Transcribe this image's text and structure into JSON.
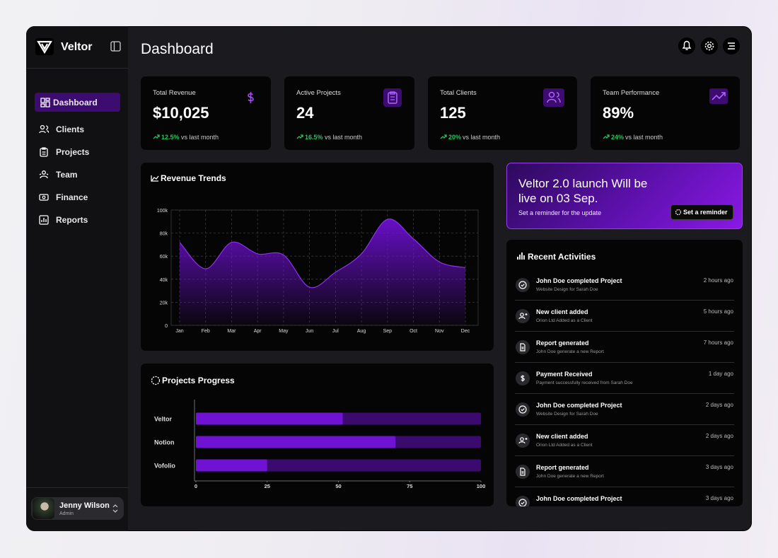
{
  "brand": "Veltor",
  "nav": [
    "Dashboard",
    "Clients",
    "Projects",
    "Team",
    "Finance",
    "Reports"
  ],
  "user": {
    "name": "Jenny Wilson",
    "role": "Admin"
  },
  "header": {
    "title": "Dashboard"
  },
  "stats": [
    {
      "label": "Total Revenue",
      "value": "$10,025",
      "change": "12.5%",
      "note": "vs last month"
    },
    {
      "label": "Active Projects",
      "value": "24",
      "change": "16.5%",
      "note": "vs last month"
    },
    {
      "label": "Total Clients",
      "value": "125",
      "change": "20%",
      "note": "vs last month"
    },
    {
      "label": "Team Performance",
      "value": "89%",
      "change": "24%",
      "note": "vs last month"
    }
  ],
  "chart_data": [
    {
      "type": "area",
      "title": "Revenue Trends",
      "categories": [
        "Jan",
        "Feb",
        "Mar",
        "Apr",
        "May",
        "Jun",
        "Jul",
        "Aug",
        "Sep",
        "Oct",
        "Nov",
        "Dec"
      ],
      "values": [
        72000,
        49000,
        72000,
        62000,
        61000,
        33000,
        46000,
        62000,
        92000,
        75000,
        55000,
        50000
      ],
      "color": "#6d0fd0",
      "ylim": [
        0,
        100000
      ],
      "yticks": [
        0,
        {
          "value": 20000,
          "label": "20k"
        },
        {
          "value": 40000,
          "label": "40k"
        },
        {
          "value": 60000,
          "label": "60k"
        },
        {
          "value": 80000,
          "label": "80k"
        },
        {
          "value": 100000,
          "label": "100k"
        }
      ],
      "grid": true
    },
    {
      "type": "hbar",
      "title": "Projects Progress",
      "categories": [
        "Veltor",
        "Notion",
        "Vofolio"
      ],
      "values": [
        51.5,
        70,
        25
      ],
      "color": "#7012d4",
      "track_color": "#3b0a6e",
      "xlim": [
        0,
        100
      ],
      "xticks": [
        0,
        25,
        50,
        75,
        100
      ]
    }
  ],
  "banner": {
    "title": "Veltor 2.0 launch Will be live on 03 Sep.",
    "text": "Set a reminder for the update",
    "button": "Set a reminder"
  },
  "activities": {
    "title": "Recent Activities",
    "items": [
      {
        "title": "John Doe completed Project",
        "detail": "Website Design for Sarah Doe",
        "time": "2 hours ago"
      },
      {
        "title": "New client added",
        "detail": "Orion Ltd Added as a Client",
        "time": "5 hours ago"
      },
      {
        "title": "Report generated",
        "detail": "John Doe generate a new Report",
        "time": "7 hours ago"
      },
      {
        "title": "Payment Received",
        "detail": "Payment successfully received from Sarah Doe",
        "time": "1 day ago"
      },
      {
        "title": "John Doe completed Project",
        "detail": "Website Design for Sarah Doe",
        "time": "2 days ago"
      },
      {
        "title": "New client added",
        "detail": "Orion Ltd Added as a Client",
        "time": "2 days ago"
      },
      {
        "title": "Report generated",
        "detail": "John Doe generate a new Report",
        "time": "3 days ago"
      },
      {
        "title": "John Doe completed Project",
        "time": "3 days ago"
      }
    ]
  }
}
